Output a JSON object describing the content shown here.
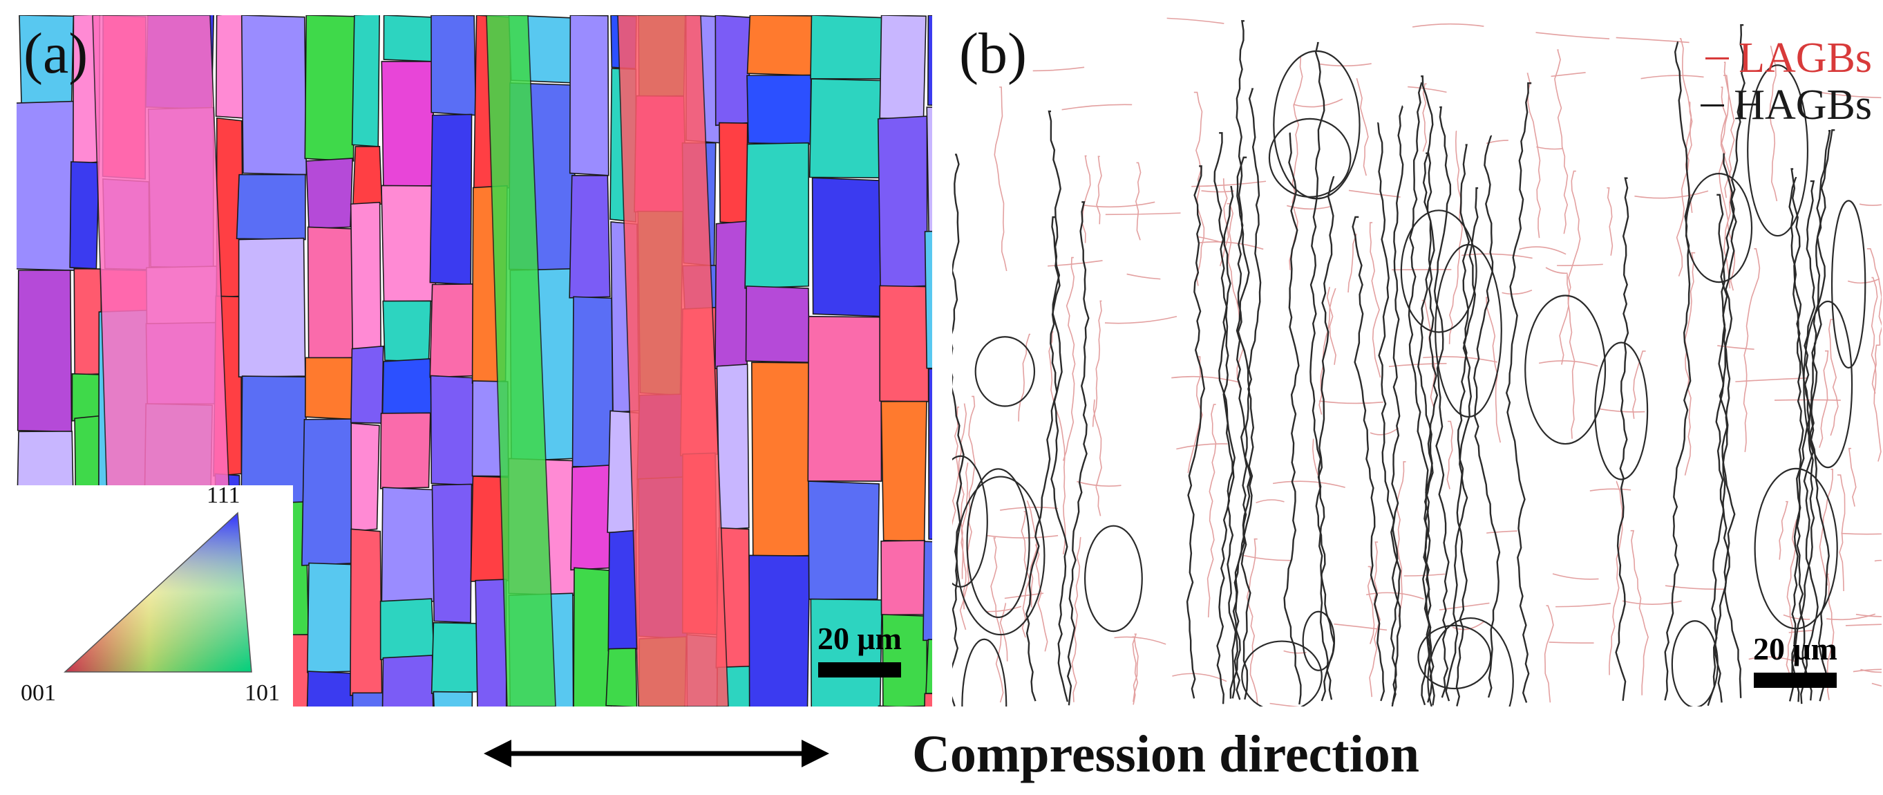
{
  "panels": {
    "a": {
      "label": "(a)",
      "scale_bar": "20 μm",
      "ipf_key": {
        "top": "111",
        "left": "001",
        "right": "101"
      }
    },
    "b": {
      "label": "(b)",
      "scale_bar": "20 μm",
      "legend": [
        {
          "text": "LAGBs",
          "color": "#d83a3a"
        },
        {
          "text": "HAGBs",
          "color": "#1a1a1a"
        }
      ]
    }
  },
  "annotation": {
    "compression_direction": "Compression direction"
  },
  "colors": {
    "lagb": "#e3a0a0",
    "hagb": "#2a2a2a",
    "ipf_palette": [
      "#3b3bf0",
      "#5a6ef5",
      "#2c50ff",
      "#ff5a6e",
      "#ff3f44",
      "#e845d8",
      "#ff8ad4",
      "#7b5cf6",
      "#3fd94a",
      "#2dd4c0",
      "#58c8f0",
      "#9a8cff",
      "#ff7a2e",
      "#b54ad8",
      "#c8b6ff",
      "#fa6bab"
    ]
  }
}
